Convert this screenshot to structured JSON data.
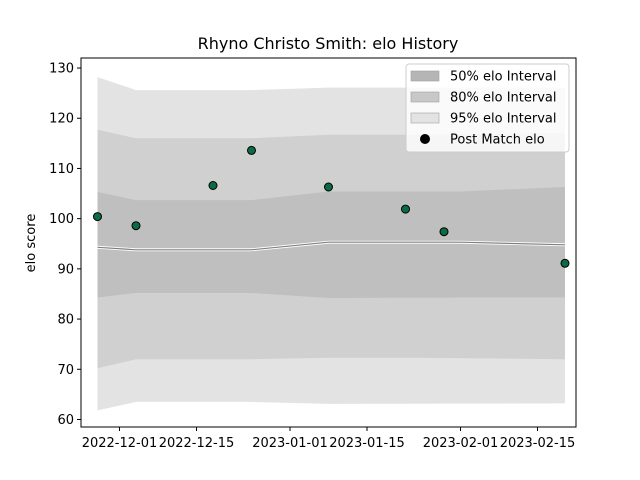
{
  "chart_data": {
    "type": "scatter",
    "title": "Rhyno Christo Smith: elo History",
    "xlabel": "",
    "ylabel": "elo score",
    "xlim": [
      "2022-11-24",
      "2023-02-22"
    ],
    "ylim": [
      58.5,
      132
    ],
    "yticks": [
      60,
      70,
      80,
      90,
      100,
      110,
      120,
      130
    ],
    "xticks": [
      {
        "date": "2022-12-01",
        "label": "2022-12-01"
      },
      {
        "date": "2022-12-15",
        "label": "2022-12-15"
      },
      {
        "date": "2023-01-01",
        "label": "2023-01-01"
      },
      {
        "date": "2023-01-15",
        "label": "2023-01-15"
      },
      {
        "date": "2023-02-01",
        "label": "2023-02-01"
      },
      {
        "date": "2023-02-15",
        "label": "2023-02-15"
      }
    ],
    "intervals": [
      {
        "name": "95% elo Interval",
        "color": "#e3e3e3",
        "x": [
          "2022-11-27",
          "2022-12-04",
          "2022-12-25",
          "2023-01-08",
          "2023-02-20"
        ],
        "lower": [
          61.8,
          63.5,
          63.5,
          63.1,
          63.2
        ],
        "upper": [
          128.2,
          125.6,
          125.6,
          126.1,
          126.1
        ]
      },
      {
        "name": "80% elo Interval",
        "color": "#d0d0d0",
        "x": [
          "2022-11-27",
          "2022-12-04",
          "2022-12-25",
          "2023-01-08",
          "2023-01-24",
          "2023-02-20"
        ],
        "lower": [
          70.2,
          72.0,
          72.0,
          72.3,
          72.3,
          72.0
        ],
        "upper": [
          117.7,
          116.0,
          116.0,
          116.7,
          116.7,
          117.1
        ]
      },
      {
        "name": "50% elo Interval",
        "color": "#bfbfbf",
        "x": [
          "2022-11-27",
          "2022-12-04",
          "2022-12-25",
          "2023-01-08",
          "2023-02-01",
          "2023-02-20"
        ],
        "lower": [
          84.3,
          85.2,
          85.2,
          84.2,
          84.3,
          84.3
        ],
        "upper": [
          105.3,
          103.7,
          103.7,
          105.4,
          105.4,
          106.3
        ]
      }
    ],
    "mean_line": {
      "color": "#808080",
      "x": [
        "2022-11-27",
        "2022-12-04",
        "2022-12-25",
        "2023-01-08",
        "2023-02-01",
        "2023-02-20"
      ],
      "y": [
        94.3,
        93.8,
        93.8,
        95.3,
        95.3,
        94.8
      ]
    },
    "series": [
      {
        "name": "Post Match elo",
        "color": "#0b6b44",
        "x": [
          "2022-11-27",
          "2022-12-04",
          "2022-12-18",
          "2022-12-25",
          "2023-01-08",
          "2023-01-22",
          "2023-01-29",
          "2023-02-20"
        ],
        "y": [
          100.4,
          98.6,
          106.6,
          113.6,
          106.3,
          101.9,
          97.4,
          91.1
        ]
      }
    ],
    "legend": {
      "position": "top-right",
      "entries": [
        {
          "label": "50% elo Interval",
          "color": "#b5b5b5",
          "marker": "patch"
        },
        {
          "label": "80% elo Interval",
          "color": "#c8c8c8",
          "marker": "patch"
        },
        {
          "label": "95% elo Interval",
          "color": "#e3e3e3",
          "marker": "patch"
        },
        {
          "label": "Post Match elo",
          "color": "#000000",
          "marker": "circle"
        }
      ]
    },
    "grid": false
  }
}
